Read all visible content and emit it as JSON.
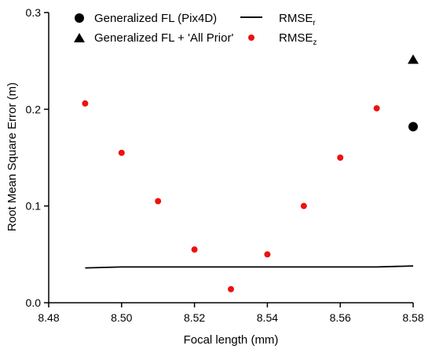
{
  "chart_data": {
    "type": "scatter",
    "title": "",
    "xlabel": "Focal length (mm)",
    "ylabel": "Root Mean Square Error (m)",
    "xlim": [
      8.48,
      8.58
    ],
    "ylim": [
      0.0,
      0.3
    ],
    "xticks": [
      "8.48",
      "8.50",
      "8.52",
      "8.54",
      "8.56",
      "8.58"
    ],
    "yticks": [
      "0.0",
      "0.1",
      "0.2",
      "0.3"
    ],
    "grid": false,
    "legend_position": "top",
    "series": [
      {
        "name": "Generalized FL (Pix4D)",
        "kind": "scatter",
        "marker": "circle",
        "color": "#000000",
        "points": [
          {
            "x": 8.58,
            "y": 0.182
          }
        ]
      },
      {
        "name": "Generalized FL + 'All Prior'",
        "kind": "scatter",
        "marker": "triangle",
        "color": "#000000",
        "points": [
          {
            "x": 8.58,
            "y": 0.251
          }
        ]
      },
      {
        "name": "RMSE",
        "name_sub": "r",
        "kind": "line",
        "color": "#000000",
        "points": [
          {
            "x": 8.49,
            "y": 0.036
          },
          {
            "x": 8.5,
            "y": 0.037
          },
          {
            "x": 8.51,
            "y": 0.037
          },
          {
            "x": 8.52,
            "y": 0.037
          },
          {
            "x": 8.53,
            "y": 0.037
          },
          {
            "x": 8.54,
            "y": 0.037
          },
          {
            "x": 8.55,
            "y": 0.037
          },
          {
            "x": 8.56,
            "y": 0.037
          },
          {
            "x": 8.57,
            "y": 0.037
          },
          {
            "x": 8.58,
            "y": 0.038
          }
        ]
      },
      {
        "name": "RMSE",
        "name_sub": "z",
        "kind": "scatter",
        "marker": "circle",
        "color": "#ee1111",
        "points": [
          {
            "x": 8.49,
            "y": 0.206
          },
          {
            "x": 8.5,
            "y": 0.155
          },
          {
            "x": 8.51,
            "y": 0.105
          },
          {
            "x": 8.52,
            "y": 0.055
          },
          {
            "x": 8.53,
            "y": 0.014
          },
          {
            "x": 8.54,
            "y": 0.05
          },
          {
            "x": 8.55,
            "y": 0.1
          },
          {
            "x": 8.56,
            "y": 0.15
          },
          {
            "x": 8.57,
            "y": 0.201
          }
        ]
      }
    ]
  }
}
